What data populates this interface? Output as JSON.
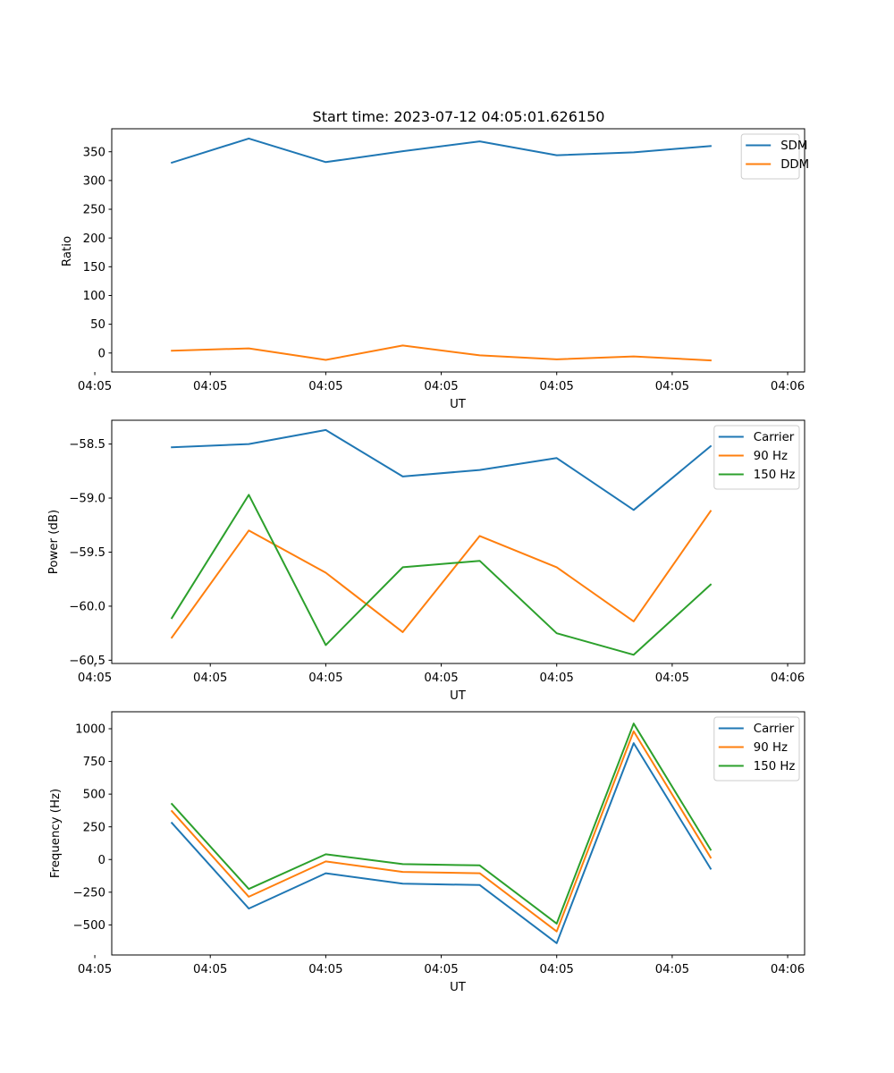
{
  "chart_data": [
    {
      "type": "line",
      "title": "Start time: 2023-07-12 04:05:01.626150",
      "xlabel": "UT",
      "ylabel": "Ratio",
      "x": [
        1,
        2,
        3,
        4,
        5,
        6,
        7,
        8
      ],
      "xlim": [
        0.22,
        9.22
      ],
      "xticks": [
        {
          "x": 0,
          "label": "04:05"
        },
        {
          "x": 1.5,
          "label": "04:05"
        },
        {
          "x": 3,
          "label": "04:05"
        },
        {
          "x": 4.5,
          "label": "04:05"
        },
        {
          "x": 6,
          "label": "04:05"
        },
        {
          "x": 7.5,
          "label": "04:05"
        },
        {
          "x": 9,
          "label": "04:06"
        }
      ],
      "ylim": [
        -33,
        390
      ],
      "yticks": [
        0,
        50,
        100,
        150,
        200,
        250,
        300,
        350
      ],
      "legend": "top-right",
      "series": [
        {
          "name": "SDM",
          "color": "#1f77b4",
          "values": [
            331,
            373,
            332,
            351,
            368,
            344,
            349,
            360
          ]
        },
        {
          "name": "DDM",
          "color": "#ff7f0e",
          "values": [
            4,
            8,
            -12,
            13,
            -4,
            -11,
            -6,
            -13
          ]
        }
      ]
    },
    {
      "type": "line",
      "title": "",
      "xlabel": "UT",
      "ylabel": "Power (dB)",
      "x": [
        1,
        2,
        3,
        4,
        5,
        6,
        7,
        8
      ],
      "xlim": [
        0.22,
        9.22
      ],
      "xticks": [
        {
          "x": 0,
          "label": "04:05"
        },
        {
          "x": 1.5,
          "label": "04:05"
        },
        {
          "x": 3,
          "label": "04:05"
        },
        {
          "x": 4.5,
          "label": "04:05"
        },
        {
          "x": 6,
          "label": "04:05"
        },
        {
          "x": 7.5,
          "label": "04:05"
        },
        {
          "x": 9,
          "label": "04:06"
        }
      ],
      "ylim": [
        -60.53,
        -58.28
      ],
      "yticks": [
        -60.5,
        -60.0,
        -59.5,
        -59.0,
        -58.5
      ],
      "ytick_labels": [
        "−60.5",
        "−60.0",
        "−59.5",
        "−59.0",
        "−58.5"
      ],
      "legend": "top-right",
      "series": [
        {
          "name": "Carrier",
          "color": "#1f77b4",
          "values": [
            -58.53,
            -58.5,
            -58.37,
            -58.8,
            -58.74,
            -58.63,
            -59.11,
            -58.52
          ]
        },
        {
          "name": "90 Hz",
          "color": "#ff7f0e",
          "values": [
            -60.29,
            -59.3,
            -59.69,
            -60.24,
            -59.35,
            -59.64,
            -60.14,
            -59.12
          ]
        },
        {
          "name": "150 Hz",
          "color": "#2ca02c",
          "values": [
            -60.11,
            -58.97,
            -60.36,
            -59.64,
            -59.58,
            -60.25,
            -60.45,
            -59.8
          ]
        }
      ]
    },
    {
      "type": "line",
      "title": "",
      "xlabel": "UT",
      "ylabel": "Frequency (Hz)",
      "x": [
        1,
        2,
        3,
        4,
        5,
        6,
        7,
        8
      ],
      "xlim": [
        0.22,
        9.22
      ],
      "xticks": [
        {
          "x": 0,
          "label": "04:05"
        },
        {
          "x": 1.5,
          "label": "04:05"
        },
        {
          "x": 3,
          "label": "04:05"
        },
        {
          "x": 4.5,
          "label": "04:05"
        },
        {
          "x": 6,
          "label": "04:05"
        },
        {
          "x": 7.5,
          "label": "04:05"
        },
        {
          "x": 9,
          "label": "04:06"
        }
      ],
      "ylim": [
        -730,
        1130
      ],
      "yticks": [
        -500,
        -250,
        0,
        250,
        500,
        750,
        1000
      ],
      "ytick_labels": [
        "−500",
        "−250",
        "0",
        "250",
        "500",
        "750",
        "1000"
      ],
      "legend": "top-right",
      "series": [
        {
          "name": "Carrier",
          "color": "#1f77b4",
          "values": [
            280,
            -375,
            -105,
            -185,
            -195,
            -640,
            890,
            -70
          ]
        },
        {
          "name": "90 Hz",
          "color": "#ff7f0e",
          "values": [
            370,
            -285,
            -15,
            -95,
            -105,
            -550,
            980,
            15
          ]
        },
        {
          "name": "150 Hz",
          "color": "#2ca02c",
          "values": [
            425,
            -225,
            40,
            -35,
            -45,
            -490,
            1040,
            75
          ]
        }
      ]
    }
  ]
}
